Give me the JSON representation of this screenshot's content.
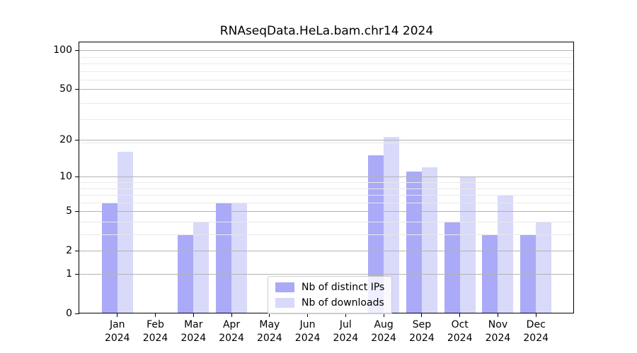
{
  "chart_data": {
    "type": "bar",
    "title": "RNAseqData.HeLa.bam.chr14 2024",
    "xlabel": "",
    "ylabel": "",
    "categories": [
      "Jan",
      "Feb",
      "Mar",
      "Apr",
      "May",
      "Jun",
      "Jul",
      "Aug",
      "Sep",
      "Oct",
      "Nov",
      "Dec"
    ],
    "year_label": "2024",
    "series": [
      {
        "name": "Nb of distinct IPs",
        "color": "#aaaaf8",
        "values": [
          6,
          0,
          3,
          6,
          0,
          0,
          0,
          15,
          11,
          4,
          3,
          3
        ]
      },
      {
        "name": "Nb of downloads",
        "color": "#d9d9fa",
        "values": [
          16,
          0,
          4,
          6,
          0,
          0,
          0,
          21,
          12,
          10,
          7,
          4
        ]
      }
    ],
    "yscale": "log1p",
    "ylim": [
      0,
      115
    ],
    "yticks": [
      0,
      1,
      2,
      5,
      10,
      20,
      50,
      100
    ],
    "ytick_labels": [
      "0",
      "1",
      "2",
      "5",
      "10",
      "20",
      "50",
      "100"
    ],
    "minor_gridlines": [
      3,
      4,
      6,
      7,
      8,
      9,
      19,
      29,
      39,
      59,
      69,
      79,
      89
    ],
    "grid": true,
    "legend_position": "lower-center-inside",
    "colors": {
      "major_grid": "#b3b3b3",
      "minor_grid": "#e9e9e9",
      "axis": "#000000",
      "text": "#000000",
      "legend_border": "#cccccc",
      "legend_bg": "rgba(255,255,255,0.8)"
    }
  }
}
